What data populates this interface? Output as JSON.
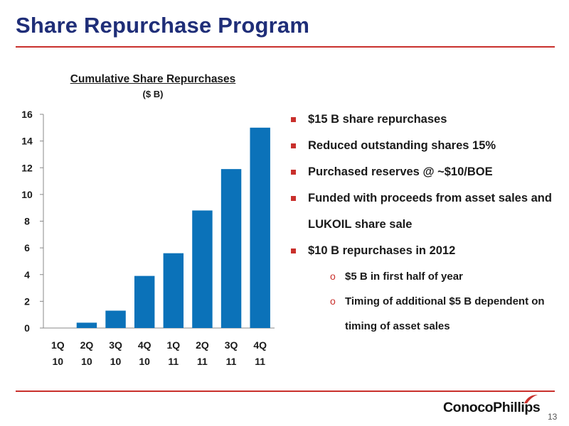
{
  "slide": {
    "title": "Share Repurchase Program",
    "page_number": "13",
    "logo_text": "ConocoPhillips"
  },
  "colors": {
    "title": "#1f2e78",
    "accent": "#c9302c",
    "bar": "#0b72b9",
    "text": "#1a1a1a"
  },
  "chart_data": {
    "type": "bar",
    "title": "Cumulative Share Repurchases",
    "unit": "($ B)",
    "xlabel": "",
    "ylabel": "",
    "categories": [
      [
        "1Q",
        "10"
      ],
      [
        "2Q",
        "10"
      ],
      [
        "3Q",
        "10"
      ],
      [
        "4Q",
        "10"
      ],
      [
        "1Q",
        "11"
      ],
      [
        "2Q",
        "11"
      ],
      [
        "3Q",
        "11"
      ],
      [
        "4Q",
        "11"
      ]
    ],
    "values": [
      0,
      0.4,
      1.3,
      3.9,
      5.6,
      8.8,
      11.9,
      15.0
    ],
    "ylim": [
      0,
      16
    ],
    "yticks": [
      0,
      2,
      4,
      6,
      8,
      10,
      12,
      14,
      16
    ],
    "grid": false,
    "legend": "none"
  },
  "bullets": [
    {
      "text": "$15 B share repurchases"
    },
    {
      "text": "Reduced outstanding shares 15%"
    },
    {
      "text": "Purchased reserves @ ~$10/BOE"
    },
    {
      "text": "Funded with proceeds from asset sales and LUKOIL share sale"
    },
    {
      "text": "$10 B repurchases in 2012",
      "sub": [
        {
          "text": "$5 B in first half of year"
        },
        {
          "text": "Timing of additional $5 B dependent on timing of asset sales"
        }
      ]
    }
  ],
  "sub_bullet_glyph": "o"
}
